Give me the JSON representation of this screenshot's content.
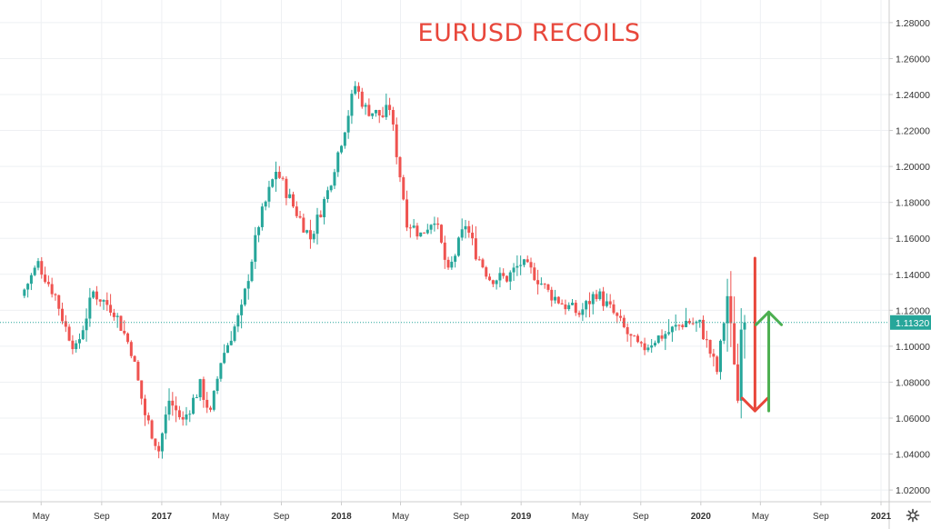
{
  "chart_data": {
    "type": "candlestick",
    "title": "EURUSD RECOILS",
    "title_color": "#e8473b",
    "xlabel": "",
    "ylabel": "",
    "ylim": [
      1.015,
      1.285
    ],
    "grid": true,
    "y_ticks": [
      "1.28000",
      "1.26000",
      "1.24000",
      "1.22000",
      "1.20000",
      "1.18000",
      "1.16000",
      "1.14000",
      "1.12000",
      "1.10000",
      "1.08000",
      "1.06000",
      "1.04000",
      "1.02000"
    ],
    "x_ticks": [
      {
        "label": "May",
        "year": false
      },
      {
        "label": "Sep",
        "year": false
      },
      {
        "label": "2017",
        "year": true
      },
      {
        "label": "May",
        "year": false
      },
      {
        "label": "Sep",
        "year": false
      },
      {
        "label": "2018",
        "year": true
      },
      {
        "label": "May",
        "year": false
      },
      {
        "label": "Sep",
        "year": false
      },
      {
        "label": "2019",
        "year": true
      },
      {
        "label": "May",
        "year": false
      },
      {
        "label": "Sep",
        "year": false
      },
      {
        "label": "2020",
        "year": true
      },
      {
        "label": "May",
        "year": false
      },
      {
        "label": "Sep",
        "year": false
      },
      {
        "label": "2021",
        "year": true
      }
    ],
    "last_price": "1.11320",
    "last_value": 1.1132,
    "colors": {
      "up": "#26a69a",
      "down": "#ef5350",
      "last_price_bg": "#26a69a",
      "arrow_down": "#e8473b",
      "arrow_up": "#4caf50",
      "grid": "#eef0f3",
      "axis": "#cccccc"
    },
    "path_points": [
      [
        "2016-03-28",
        1.128
      ],
      [
        "2016-05-02",
        1.146
      ],
      [
        "2016-06-06",
        1.128
      ],
      [
        "2016-06-27",
        1.11
      ],
      [
        "2016-07-18",
        1.098
      ],
      [
        "2016-08-22",
        1.13
      ],
      [
        "2016-10-03",
        1.12
      ],
      [
        "2016-11-07",
        1.098
      ],
      [
        "2016-12-05",
        1.062
      ],
      [
        "2017-01-02",
        1.042
      ],
      [
        "2017-01-23",
        1.07
      ],
      [
        "2017-02-20",
        1.058
      ],
      [
        "2017-03-27",
        1.078
      ],
      [
        "2017-04-17",
        1.062
      ],
      [
        "2017-05-08",
        1.092
      ],
      [
        "2017-06-19",
        1.12
      ],
      [
        "2017-07-24",
        1.168
      ],
      [
        "2017-08-28",
        1.198
      ],
      [
        "2017-10-02",
        1.178
      ],
      [
        "2017-11-06",
        1.16
      ],
      [
        "2017-12-11",
        1.186
      ],
      [
        "2018-01-15",
        1.222
      ],
      [
        "2018-02-05",
        1.245
      ],
      [
        "2018-02-26",
        1.232
      ],
      [
        "2018-04-02",
        1.228
      ],
      [
        "2018-04-16",
        1.233
      ],
      [
        "2018-05-21",
        1.17
      ],
      [
        "2018-06-18",
        1.162
      ],
      [
        "2018-07-16",
        1.172
      ],
      [
        "2018-08-13",
        1.14
      ],
      [
        "2018-09-17",
        1.168
      ],
      [
        "2018-10-08",
        1.152
      ],
      [
        "2018-11-05",
        1.138
      ],
      [
        "2018-12-10",
        1.138
      ],
      [
        "2019-01-07",
        1.146
      ],
      [
        "2019-02-04",
        1.14
      ],
      [
        "2019-03-04",
        1.13
      ],
      [
        "2019-04-01",
        1.124
      ],
      [
        "2019-05-06",
        1.118
      ],
      [
        "2019-06-10",
        1.13
      ],
      [
        "2019-07-15",
        1.118
      ],
      [
        "2019-08-19",
        1.104
      ],
      [
        "2019-09-09",
        1.098
      ],
      [
        "2019-10-07",
        1.104
      ],
      [
        "2019-11-04",
        1.108
      ],
      [
        "2019-12-09",
        1.114
      ],
      [
        "2020-01-06",
        1.112
      ],
      [
        "2020-02-10",
        1.086
      ],
      [
        "2020-03-02",
        1.128
      ],
      [
        "2020-03-16",
        1.092
      ],
      [
        "2020-03-23",
        1.07
      ],
      [
        "2020-03-30",
        1.1132
      ]
    ],
    "annotations": [
      {
        "type": "arrow",
        "direction": "down",
        "from": [
          "2020-04-20",
          1.149
        ],
        "to": [
          "2020-04-20",
          1.064
        ]
      },
      {
        "type": "arrow",
        "direction": "up",
        "from": [
          "2020-05-18",
          1.064
        ],
        "to": [
          "2020-05-18",
          1.119
        ]
      }
    ]
  }
}
